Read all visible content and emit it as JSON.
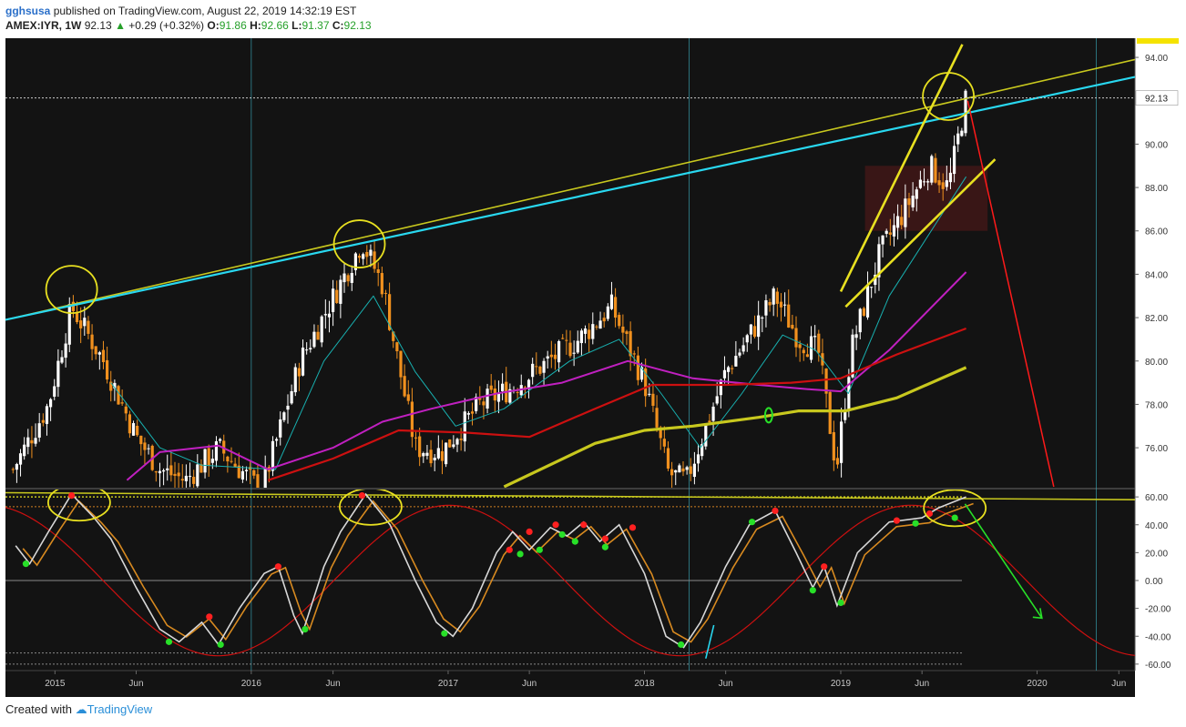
{
  "header": {
    "user": "gghsusa",
    "published": "published on TradingView.com, August 22, 2019 14:32:19 EST",
    "symbol": "AMEX:IYR, 1W",
    "last": "92.13",
    "change_arrow": "▲",
    "change": "+0.29 (+0.32%)",
    "o_label": "O:",
    "o": "91.86",
    "h_label": "H:",
    "h": "92.66",
    "l_label": "L:",
    "l": "91.37",
    "c_label": "C:",
    "c": "92.13"
  },
  "footer": {
    "created": "Created with",
    "brand": "TradingView"
  },
  "colors": {
    "background": "#131313",
    "up": "#ffffff",
    "down": "#f0901e",
    "cyan_trend": "#29d8f0",
    "yellow": "#e8e020",
    "olive": "#c8c81e",
    "red_ma": "#cc1010",
    "magenta_ma": "#c020c0",
    "teal_ma": "#18b0b0",
    "projection": "#ff1a1a",
    "green_arrow": "#28e028"
  },
  "chart_data": [
    {
      "type": "candlestick",
      "title": "AMEX:IYR, 1W",
      "ylim": [
        74.2,
        94.8
      ],
      "y_ticks": [
        76,
        78,
        80,
        82,
        84,
        86,
        88,
        90,
        92,
        94
      ],
      "y_tick_labels": [
        "76.00",
        "78.00",
        "80.00",
        "82.00",
        "84.00",
        "86.00",
        "88.00",
        "90.00",
        "94.00"
      ],
      "last_price_label": "92.13",
      "x_ticks": [
        {
          "date": "2015-01-01",
          "label": "2015"
        },
        {
          "date": "2015-06-01",
          "label": "Jun"
        },
        {
          "date": "2016-01-01",
          "label": "2016"
        },
        {
          "date": "2016-06-01",
          "label": "Jun"
        },
        {
          "date": "2017-01-01",
          "label": "2017"
        },
        {
          "date": "2017-06-01",
          "label": "Jun"
        },
        {
          "date": "2018-01-01",
          "label": "2018"
        },
        {
          "date": "2018-06-01",
          "label": "Jun"
        },
        {
          "date": "2019-01-01",
          "label": "2019"
        },
        {
          "date": "2019-06-01",
          "label": "Jun"
        },
        {
          "date": "2020-01-01",
          "label": "2020"
        },
        {
          "date": "2020-06-01",
          "label": "Jun"
        }
      ],
      "price_path": [
        {
          "date": "2014-10-15",
          "value": 75.0
        },
        {
          "date": "2014-12-20",
          "value": 78.0
        },
        {
          "date": "2015-02-01",
          "value": 82.5
        },
        {
          "date": "2015-04-01",
          "value": 80.0
        },
        {
          "date": "2015-06-01",
          "value": 76.5
        },
        {
          "date": "2015-07-15",
          "value": 75.0
        },
        {
          "date": "2015-09-01",
          "value": 74.5
        },
        {
          "date": "2015-11-01",
          "value": 76.0
        },
        {
          "date": "2016-01-20",
          "value": 74.0
        },
        {
          "date": "2016-04-01",
          "value": 80.0
        },
        {
          "date": "2016-07-25",
          "value": 85.5
        },
        {
          "date": "2016-09-01",
          "value": 83.5
        },
        {
          "date": "2016-11-01",
          "value": 76.0
        },
        {
          "date": "2016-12-20",
          "value": 75.8
        },
        {
          "date": "2017-03-01",
          "value": 78.0
        },
        {
          "date": "2017-05-01",
          "value": 78.8
        },
        {
          "date": "2017-09-01",
          "value": 81.0
        },
        {
          "date": "2017-11-01",
          "value": 82.5
        },
        {
          "date": "2018-01-01",
          "value": 79.0
        },
        {
          "date": "2018-02-15",
          "value": 74.8
        },
        {
          "date": "2018-03-20",
          "value": 74.5
        },
        {
          "date": "2018-06-01",
          "value": 79.5
        },
        {
          "date": "2018-09-01",
          "value": 83.0
        },
        {
          "date": "2018-10-15",
          "value": 81.0
        },
        {
          "date": "2018-11-20",
          "value": 80.5
        },
        {
          "date": "2018-12-24",
          "value": 75.0
        },
        {
          "date": "2019-01-20",
          "value": 80.5
        },
        {
          "date": "2019-03-15",
          "value": 85.0
        },
        {
          "date": "2019-05-01",
          "value": 87.0
        },
        {
          "date": "2019-06-15",
          "value": 89.0
        },
        {
          "date": "2019-07-20",
          "value": 88.0
        },
        {
          "date": "2019-08-22",
          "value": 92.13
        }
      ],
      "moving_averages": [
        {
          "color": "teal",
          "points": [
            {
              "date": "2015-04-15",
              "value": 79.0
            },
            {
              "date": "2015-07-15",
              "value": 76.0
            },
            {
              "date": "2015-10-01",
              "value": 75.2
            },
            {
              "date": "2016-02-15",
              "value": 75.0
            },
            {
              "date": "2016-05-15",
              "value": 80.0
            },
            {
              "date": "2016-08-15",
              "value": 83.0
            },
            {
              "date": "2016-11-01",
              "value": 79.5
            },
            {
              "date": "2017-01-15",
              "value": 77.0
            },
            {
              "date": "2017-04-15",
              "value": 77.8
            },
            {
              "date": "2017-08-15",
              "value": 80.0
            },
            {
              "date": "2017-11-15",
              "value": 81.0
            },
            {
              "date": "2018-02-01",
              "value": 78.5
            },
            {
              "date": "2018-04-15",
              "value": 76.0
            },
            {
              "date": "2018-07-01",
              "value": 78.5
            },
            {
              "date": "2018-09-15",
              "value": 81.2
            },
            {
              "date": "2018-11-15",
              "value": 80.5
            },
            {
              "date": "2019-01-15",
              "value": 78.5
            },
            {
              "date": "2019-04-01",
              "value": 83.0
            },
            {
              "date": "2019-08-22",
              "value": 88.5
            }
          ]
        },
        {
          "color": "magenta",
          "points": [
            {
              "date": "2015-05-15",
              "value": 74.5
            },
            {
              "date": "2015-07-15",
              "value": 75.8
            },
            {
              "date": "2015-11-01",
              "value": 76.1
            },
            {
              "date": "2016-02-01",
              "value": 75.0
            },
            {
              "date": "2016-06-01",
              "value": 76.0
            },
            {
              "date": "2016-09-01",
              "value": 77.2
            },
            {
              "date": "2016-12-01",
              "value": 77.8
            },
            {
              "date": "2017-04-01",
              "value": 78.5
            },
            {
              "date": "2017-08-01",
              "value": 79.0
            },
            {
              "date": "2017-12-01",
              "value": 80.0
            },
            {
              "date": "2018-04-01",
              "value": 79.2
            },
            {
              "date": "2018-08-01",
              "value": 78.9
            },
            {
              "date": "2018-11-01",
              "value": 78.7
            },
            {
              "date": "2019-01-01",
              "value": 78.6
            },
            {
              "date": "2019-04-01",
              "value": 80.5
            },
            {
              "date": "2019-08-22",
              "value": 84.1
            }
          ]
        },
        {
          "color": "red",
          "points": [
            {
              "date": "2016-02-01",
              "value": 74.5
            },
            {
              "date": "2016-06-01",
              "value": 75.5
            },
            {
              "date": "2016-10-01",
              "value": 76.8
            },
            {
              "date": "2017-02-01",
              "value": 76.7
            },
            {
              "date": "2017-06-01",
              "value": 76.5
            },
            {
              "date": "2017-10-01",
              "value": 77.8
            },
            {
              "date": "2018-01-15",
              "value": 78.9
            },
            {
              "date": "2018-06-01",
              "value": 78.9
            },
            {
              "date": "2018-10-01",
              "value": 79.0
            },
            {
              "date": "2019-01-01",
              "value": 79.2
            },
            {
              "date": "2019-04-15",
              "value": 80.3
            },
            {
              "date": "2019-08-22",
              "value": 81.5
            }
          ]
        },
        {
          "color": "olive",
          "points": [
            {
              "date": "2017-04-15",
              "value": 74.2
            },
            {
              "date": "2017-10-01",
              "value": 76.2
            },
            {
              "date": "2018-01-01",
              "value": 76.8
            },
            {
              "date": "2018-04-01",
              "value": 77.0
            },
            {
              "date": "2018-08-01",
              "value": 77.4
            },
            {
              "date": "2018-10-15",
              "value": 77.7
            },
            {
              "date": "2019-01-10",
              "value": 77.7
            },
            {
              "date": "2019-04-15",
              "value": 78.3
            },
            {
              "date": "2019-08-22",
              "value": 79.7
            }
          ]
        }
      ],
      "annotations": {
        "cyan_trendline": [
          {
            "date": "2014-10-01",
            "value": 81.9
          },
          {
            "date": "2020-07-01",
            "value": 93.1
          }
        ],
        "yellow_trendline": [
          {
            "date": "2014-10-01",
            "value": 81.9
          },
          {
            "date": "2020-07-01",
            "value": 93.9
          }
        ],
        "wedge_upper": [
          {
            "date": "2019-01-01",
            "value": 83.2
          },
          {
            "date": "2019-08-15",
            "value": 94.6
          }
        ],
        "wedge_lower": [
          {
            "date": "2019-01-10",
            "value": 82.5
          },
          {
            "date": "2019-10-15",
            "value": 89.3
          }
        ],
        "projection": [
          {
            "date": "2019-08-25",
            "value": 92.0
          },
          {
            "date": "2020-02-01",
            "value": 74.2
          }
        ],
        "box": {
          "from": "2019-02-15",
          "to": "2019-10-01",
          "top": 89.0,
          "bottom": 86.0
        },
        "circles": [
          {
            "date": "2015-02-01",
            "value": 83.3
          },
          {
            "date": "2016-07-20",
            "value": 85.4
          },
          {
            "date": "2019-07-20",
            "value": 92.2
          }
        ],
        "vertical_lines": [
          "2016-01-01",
          "2018-03-25",
          "2020-04-20"
        ]
      }
    },
    {
      "type": "line",
      "ylim": [
        -64,
        64
      ],
      "y_ticks": [
        60,
        40,
        20,
        0,
        -20,
        -40,
        -60
      ],
      "y_tick_labels": [
        "60.00",
        "40.00",
        "20.00",
        "0.00",
        "-20.00",
        "-40.00",
        "-60.00"
      ],
      "reference_lines": [
        60,
        53,
        0,
        -52,
        -60
      ],
      "oscillator": [
        {
          "date": "2014-10-20",
          "value": 25
        },
        {
          "date": "2014-11-15",
          "value": 12
        },
        {
          "date": "2014-12-20",
          "value": 35
        },
        {
          "date": "2015-02-01",
          "value": 62
        },
        {
          "date": "2015-03-15",
          "value": 45
        },
        {
          "date": "2015-04-15",
          "value": 30
        },
        {
          "date": "2015-06-01",
          "value": -5
        },
        {
          "date": "2015-07-15",
          "value": -35
        },
        {
          "date": "2015-08-20",
          "value": -44
        },
        {
          "date": "2015-10-01",
          "value": -30
        },
        {
          "date": "2015-11-01",
          "value": -46
        },
        {
          "date": "2015-12-10",
          "value": -20
        },
        {
          "date": "2016-01-25",
          "value": 5
        },
        {
          "date": "2016-02-20",
          "value": 10
        },
        {
          "date": "2016-03-20",
          "value": -25
        },
        {
          "date": "2016-04-05",
          "value": -38
        },
        {
          "date": "2016-05-15",
          "value": 10
        },
        {
          "date": "2016-06-15",
          "value": 35
        },
        {
          "date": "2016-08-01",
          "value": 62
        },
        {
          "date": "2016-09-15",
          "value": 40
        },
        {
          "date": "2016-11-01",
          "value": 0
        },
        {
          "date": "2016-12-10",
          "value": -30
        },
        {
          "date": "2017-01-10",
          "value": -40
        },
        {
          "date": "2017-02-15",
          "value": -20
        },
        {
          "date": "2017-04-01",
          "value": 20
        },
        {
          "date": "2017-05-01",
          "value": 35
        },
        {
          "date": "2017-06-01",
          "value": 22
        },
        {
          "date": "2017-07-10",
          "value": 38
        },
        {
          "date": "2017-08-10",
          "value": 32
        },
        {
          "date": "2017-09-10",
          "value": 42
        },
        {
          "date": "2017-10-10",
          "value": 28
        },
        {
          "date": "2017-11-15",
          "value": 40
        },
        {
          "date": "2018-01-01",
          "value": 5
        },
        {
          "date": "2018-02-10",
          "value": -40
        },
        {
          "date": "2018-03-15",
          "value": -48
        },
        {
          "date": "2018-04-15",
          "value": -30
        },
        {
          "date": "2018-06-01",
          "value": 10
        },
        {
          "date": "2018-07-15",
          "value": 40
        },
        {
          "date": "2018-09-01",
          "value": 50
        },
        {
          "date": "2018-10-10",
          "value": 20
        },
        {
          "date": "2018-11-10",
          "value": -5
        },
        {
          "date": "2018-12-01",
          "value": 10
        },
        {
          "date": "2018-12-25",
          "value": -18
        },
        {
          "date": "2019-02-01",
          "value": 20
        },
        {
          "date": "2019-04-01",
          "value": 42
        },
        {
          "date": "2019-06-01",
          "value": 45
        },
        {
          "date": "2019-07-01",
          "value": 52
        },
        {
          "date": "2019-08-22",
          "value": 60
        }
      ],
      "dots_green": [
        {
          "date": "2014-11-08",
          "value": 12
        },
        {
          "date": "2015-08-01",
          "value": -44
        },
        {
          "date": "2015-11-05",
          "value": -46
        },
        {
          "date": "2016-04-10",
          "value": -35
        },
        {
          "date": "2016-12-25",
          "value": -38
        },
        {
          "date": "2017-05-15",
          "value": 19
        },
        {
          "date": "2017-06-20",
          "value": 22
        },
        {
          "date": "2017-08-01",
          "value": 33
        },
        {
          "date": "2017-08-25",
          "value": 28
        },
        {
          "date": "2017-10-20",
          "value": 24
        },
        {
          "date": "2018-03-10",
          "value": -46
        },
        {
          "date": "2018-07-20",
          "value": 42
        },
        {
          "date": "2018-11-10",
          "value": -7
        },
        {
          "date": "2019-01-01",
          "value": -16
        },
        {
          "date": "2019-05-20",
          "value": 41
        },
        {
          "date": "2019-08-01",
          "value": 45
        }
      ],
      "dots_red": [
        {
          "date": "2015-02-01",
          "value": 61
        },
        {
          "date": "2015-10-15",
          "value": -26
        },
        {
          "date": "2016-02-20",
          "value": 10
        },
        {
          "date": "2016-07-25",
          "value": 61
        },
        {
          "date": "2017-04-25",
          "value": 22
        },
        {
          "date": "2017-06-01",
          "value": 35
        },
        {
          "date": "2017-07-20",
          "value": 40
        },
        {
          "date": "2017-09-10",
          "value": 40
        },
        {
          "date": "2017-10-20",
          "value": 30
        },
        {
          "date": "2017-12-10",
          "value": 38
        },
        {
          "date": "2018-09-01",
          "value": 50
        },
        {
          "date": "2018-12-01",
          "value": 10
        },
        {
          "date": "2019-04-15",
          "value": 43
        },
        {
          "date": "2019-06-15",
          "value": 48
        }
      ],
      "sine_wave": {
        "amplitude": 54,
        "trough": "2015-11-01",
        "period_years": 2.35
      },
      "annotations": {
        "circles": [
          {
            "date": "2015-02-15",
            "value": 56
          },
          {
            "date": "2016-08-10",
            "value": 53
          },
          {
            "date": "2019-08-01",
            "value": 52
          }
        ],
        "yellow_line": [
          {
            "date": "2014-10-01",
            "value": 63
          },
          {
            "date": "2020-07-01",
            "value": 58
          }
        ],
        "green_arrow": [
          {
            "date": "2019-08-20",
            "value": 55
          },
          {
            "date": "2020-01-10",
            "value": -27
          }
        ]
      }
    }
  ]
}
